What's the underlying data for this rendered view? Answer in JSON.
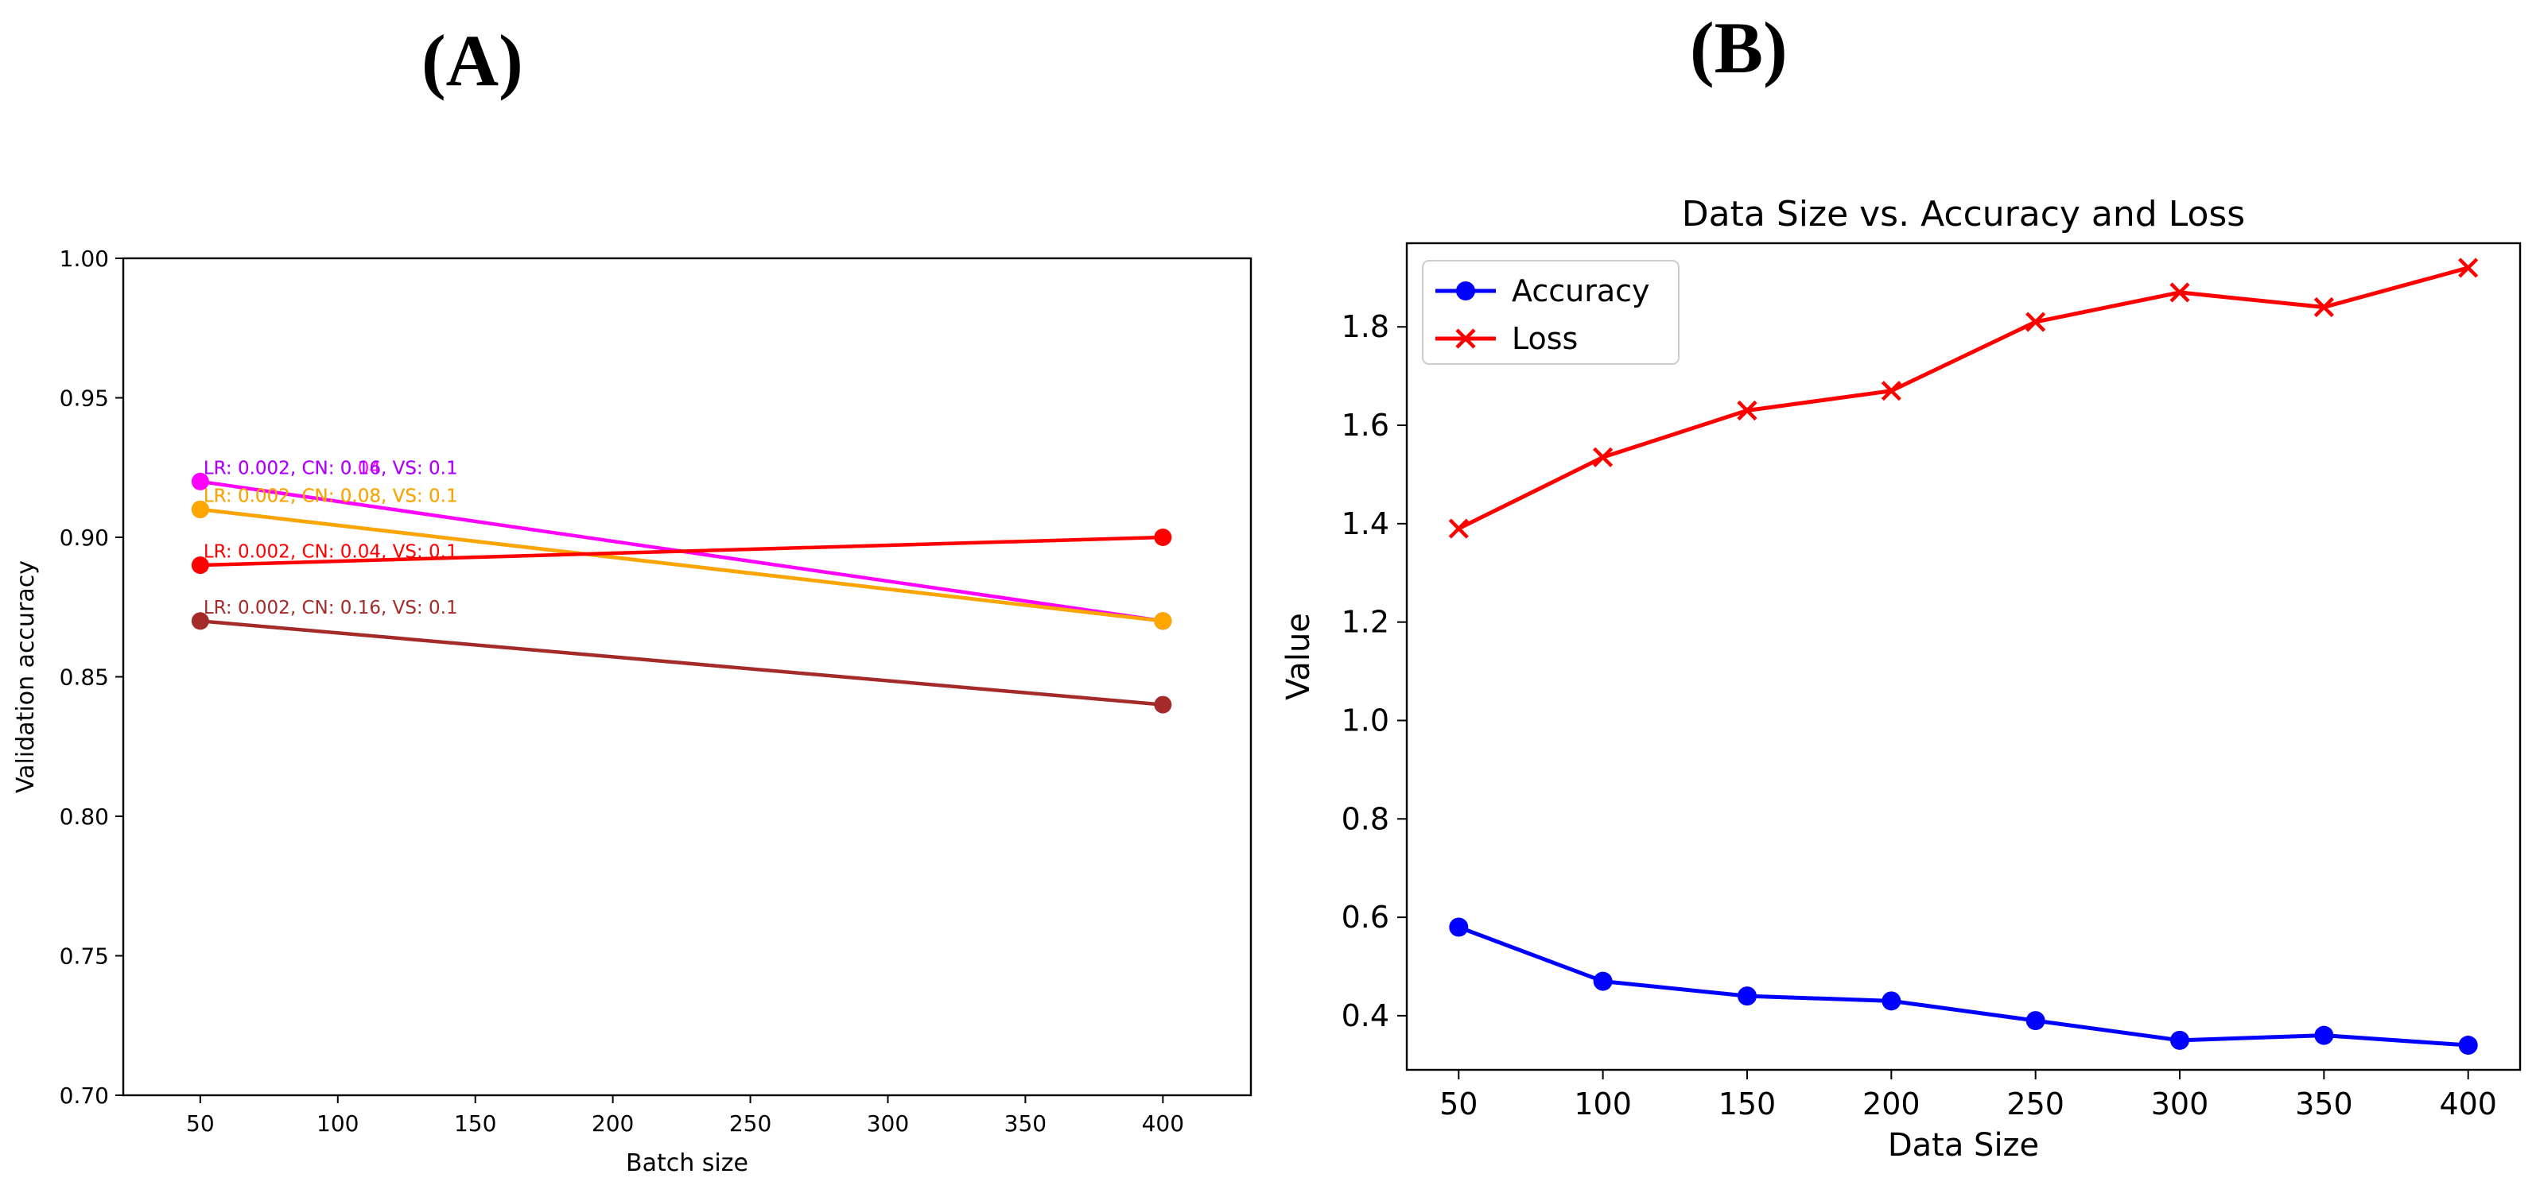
{
  "panels": {
    "a": {
      "label": "(A)"
    },
    "b": {
      "label": "(B)"
    }
  },
  "chart_data": [
    {
      "type": "line",
      "title": "",
      "xlabel": "Batch size",
      "ylabel": "Validation accuracy",
      "x": [
        50,
        400
      ],
      "xlim": [
        22,
        432
      ],
      "ylim": [
        0.7,
        1.0
      ],
      "xticks": [
        50,
        100,
        150,
        200,
        250,
        300,
        350,
        400
      ],
      "yticks": [
        0.7,
        0.75,
        0.8,
        0.85,
        0.9,
        0.95,
        1.0
      ],
      "ytick_labels": [
        "0.70",
        "0.75",
        "0.80",
        "0.85",
        "0.90",
        "0.95",
        "1.00"
      ],
      "grid": false,
      "series": [
        {
          "color": "#ff00ff",
          "values": [
            0.92,
            0.87
          ]
        },
        {
          "color": "#808000",
          "values": [
            0.91,
            0.87
          ]
        },
        {
          "color": "#ffa500",
          "values": [
            0.91,
            0.87
          ]
        },
        {
          "color": "#ff0000",
          "values": [
            0.89,
            0.9
          ]
        },
        {
          "color": "#a52a2a",
          "values": [
            0.87,
            0.84
          ]
        }
      ],
      "annotations": [
        {
          "text": "LR: 0.002, CN: 0.04, VS: 0.1",
          "x": 50,
          "y": 0.921,
          "color": "#ff00ff"
        },
        {
          "text": "LR: 0.002, CN: 0.16, VS: 0.1",
          "x": 50,
          "y": 0.921,
          "color": "#aa00ff"
        },
        {
          "text": "LR: 0.002, CN: 0.08, VS: 0.1",
          "x": 50,
          "y": 0.911,
          "color": "#808000"
        },
        {
          "text": "LR: 0.002, CN: 0.08, VS: 0.1",
          "x": 50,
          "y": 0.911,
          "color": "#ffa500"
        },
        {
          "text": "LR: 0.002, CN: 0.04, VS: 0.1",
          "x": 50,
          "y": 0.891,
          "color": "#ff0000"
        },
        {
          "text": "LR: 0.002, CN: 0.16, VS: 0.1",
          "x": 50,
          "y": 0.871,
          "color": "#a52a2a"
        }
      ]
    },
    {
      "type": "line",
      "title": "Data Size vs. Accuracy and Loss",
      "xlabel": "Data Size",
      "ylabel": "Value",
      "x": [
        50,
        100,
        150,
        200,
        250,
        300,
        350,
        400
      ],
      "xlim": [
        32,
        418
      ],
      "ylim": [
        0.29,
        1.97
      ],
      "xticks": [
        50,
        100,
        150,
        200,
        250,
        300,
        350,
        400
      ],
      "yticks": [
        0.4,
        0.6,
        0.8,
        1.0,
        1.2,
        1.4,
        1.6,
        1.8
      ],
      "ytick_labels": [
        "0.4",
        "0.6",
        "0.8",
        "1.0",
        "1.2",
        "1.4",
        "1.6",
        "1.8"
      ],
      "grid": false,
      "legend": "upper-left",
      "series": [
        {
          "name": "Accuracy",
          "color": "#0000ff",
          "marker": "circle",
          "values": [
            0.58,
            0.47,
            0.44,
            0.43,
            0.39,
            0.35,
            0.36,
            0.34
          ]
        },
        {
          "name": "Loss",
          "color": "#ff0000",
          "marker": "x",
          "values": [
            1.39,
            1.535,
            1.63,
            1.67,
            1.81,
            1.87,
            1.84,
            1.92
          ]
        }
      ]
    }
  ]
}
